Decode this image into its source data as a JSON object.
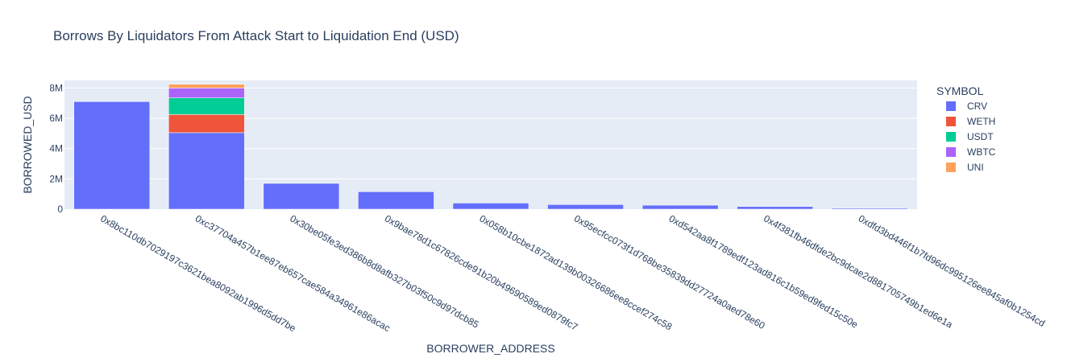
{
  "chart_data": {
    "type": "bar",
    "barmode": "stack",
    "title": "Borrows By Liquidators From Attack Start to Liquidation End (USD)",
    "xlabel": "BORROWER_ADDRESS",
    "ylabel": "BORROWED_USD",
    "ylim": [
      0,
      8500000
    ],
    "yticks": [
      0,
      2000000,
      4000000,
      6000000,
      8000000
    ],
    "ytick_labels": [
      "0",
      "2M",
      "4M",
      "6M",
      "8M"
    ],
    "grid": true,
    "legend_title": "SYMBOL",
    "legend_position": "right",
    "categories": [
      "0x8bc110db7029197c3621bea8092ab1996d5dd7be",
      "0xc37704a457b1ee87eb657cae584a34961e86acac",
      "0x30be05fe3ed386b8d8afb327b03f50c9d97dcb85",
      "0x9bae78d1c67826cde91b20b49690589ed0879fc7",
      "0x058b10cbe1872ad139b00326686ee8ccef274c58",
      "0x95ecfcc073f1d768be35839dd27724a0aed78e60",
      "0xd542aa8f1789edf123ad816c1b59ed9fed15c50e",
      "0x4f381fb46dfde2bc9dcae2d881705749b1ed6e1a",
      "0xdfd3bd446f1b7fd96dc995126ee845af0b1254cd"
    ],
    "series": [
      {
        "name": "CRV",
        "color": "#636efa",
        "values": [
          7100000,
          5050000,
          1700000,
          1150000,
          400000,
          300000,
          260000,
          170000,
          60000
        ]
      },
      {
        "name": "WETH",
        "color": "#EF553B",
        "values": [
          0,
          1200000,
          0,
          0,
          0,
          0,
          0,
          0,
          0
        ]
      },
      {
        "name": "USDT",
        "color": "#00cc96",
        "values": [
          0,
          1100000,
          0,
          0,
          0,
          0,
          0,
          0,
          0
        ]
      },
      {
        "name": "WBTC",
        "color": "#ab63fa",
        "values": [
          0,
          650000,
          0,
          0,
          0,
          0,
          0,
          0,
          0
        ]
      },
      {
        "name": "UNI",
        "color": "#FFA15A",
        "values": [
          0,
          250000,
          0,
          0,
          0,
          0,
          0,
          0,
          0
        ]
      }
    ],
    "colors": {
      "plot_bg": "#e5ecf6",
      "grid": "#ffffff",
      "text": "#2a3f5f"
    }
  }
}
